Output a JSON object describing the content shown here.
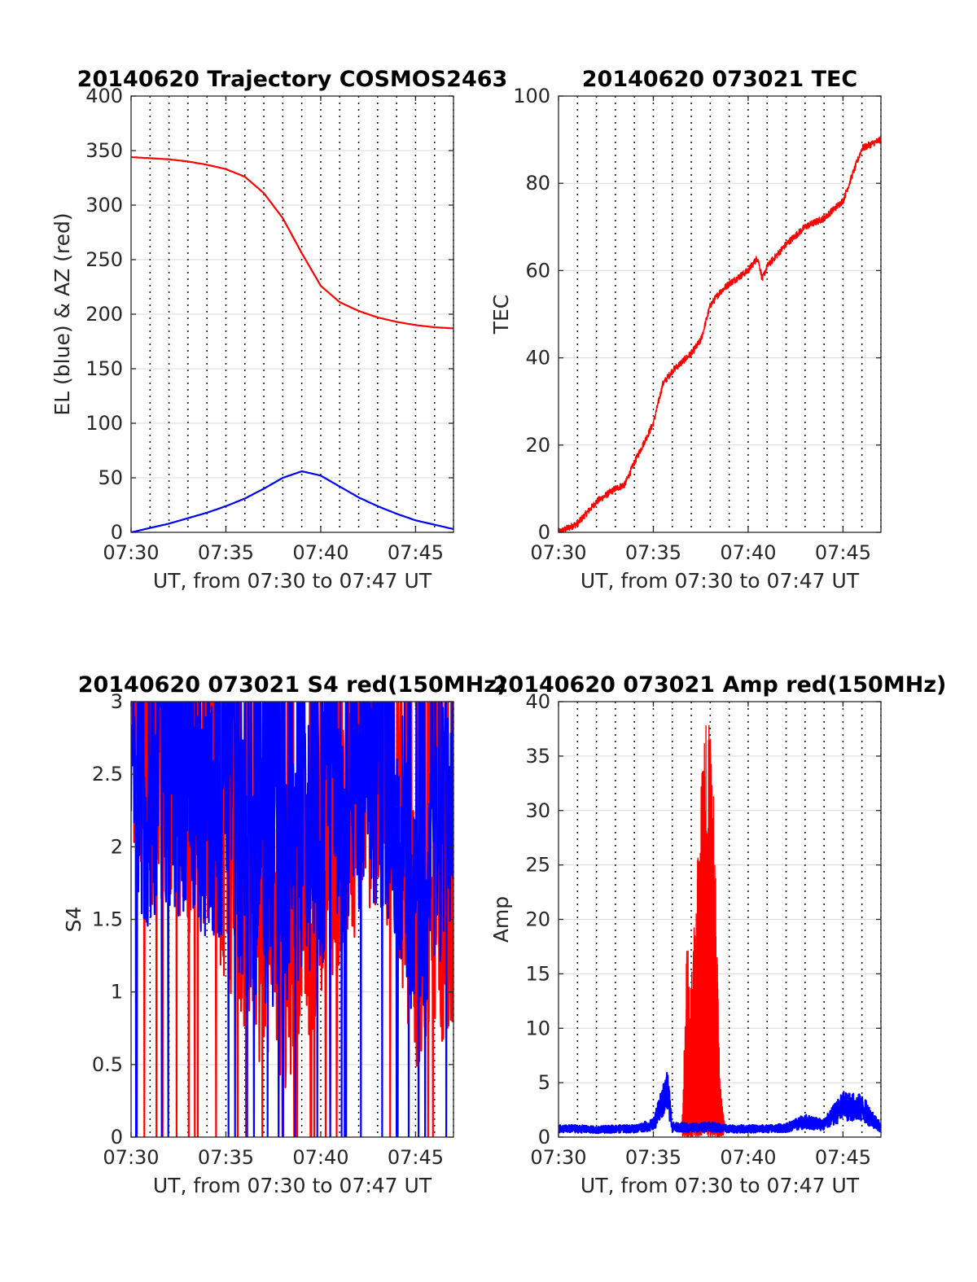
{
  "chart_data": [
    {
      "id": "trajectory",
      "type": "line",
      "title": "20140620 Trajectory COSMOS2463",
      "xlabel": "UT, from 07:30 to 07:47 UT",
      "ylabel": "EL (blue) & AZ (red)",
      "xlim": [
        "07:30",
        "07:47"
      ],
      "ylim": [
        0,
        400
      ],
      "xticks": [
        "07:30",
        "07:35",
        "07:40",
        "07:45"
      ],
      "yticks": [
        "0",
        "50",
        "100",
        "150",
        "200",
        "250",
        "300",
        "350",
        "400"
      ],
      "grid": true,
      "series": [
        {
          "color": "#ff0000",
          "x": [
            "07:30",
            "07:31",
            "07:32",
            "07:33",
            "07:34",
            "07:35",
            "07:36",
            "07:37",
            "07:38",
            "07:39",
            "07:40",
            "07:41",
            "07:42",
            "07:43",
            "07:44",
            "07:45",
            "07:46",
            "07:47"
          ],
          "values": [
            344,
            343,
            342,
            340,
            337,
            333,
            326,
            311,
            288,
            256,
            226,
            211,
            203,
            197,
            193,
            190,
            188,
            187
          ]
        },
        {
          "color": "#0000ff",
          "x": [
            "07:30",
            "07:31",
            "07:32",
            "07:33",
            "07:34",
            "07:35",
            "07:36",
            "07:37",
            "07:38",
            "07:39",
            "07:40",
            "07:41",
            "07:42",
            "07:43",
            "07:44",
            "07:45",
            "07:46",
            "07:47"
          ],
          "values": [
            0,
            4,
            8,
            13,
            18,
            24,
            31,
            40,
            50,
            56,
            52,
            42,
            32,
            24,
            17,
            11,
            7,
            3
          ]
        }
      ]
    },
    {
      "id": "tec",
      "type": "line",
      "title": "20140620 073021 TEC",
      "xlabel": "UT, from 07:30 to 07:47 UT",
      "ylabel": "TEC",
      "xlim": [
        "07:30",
        "07:47"
      ],
      "ylim": [
        0,
        100
      ],
      "xticks": [
        "07:30",
        "07:35",
        "07:40",
        "07:45"
      ],
      "yticks": [
        "0",
        "20",
        "40",
        "60",
        "80",
        "100"
      ],
      "grid": true,
      "series": [
        {
          "color": "#ff0000",
          "x": [
            "07:30",
            "07:31",
            "07:32",
            "07:33",
            "07:33:30",
            "07:34",
            "07:35",
            "07:35:30",
            "07:36",
            "07:37",
            "07:37:30",
            "07:38",
            "07:38:30",
            "07:39",
            "07:40",
            "07:40:30",
            "07:40:45",
            "07:41",
            "07:42",
            "07:43",
            "07:44",
            "07:45",
            "07:46",
            "07:47"
          ],
          "values": [
            0,
            2,
            7,
            10,
            11,
            16,
            25,
            34,
            37,
            41,
            44,
            52,
            55,
            57,
            60,
            63,
            58,
            61,
            66,
            70,
            72,
            76,
            88,
            90
          ]
        }
      ]
    },
    {
      "id": "s4",
      "type": "line",
      "title": "20140620 073021 S4 red(150MHz)",
      "xlabel": "UT, from 07:30 to 07:47 UT",
      "ylabel": "S4",
      "xlim": [
        "07:30",
        "07:47"
      ],
      "ylim": [
        0,
        3
      ],
      "xticks": [
        "07:30",
        "07:35",
        "07:40",
        "07:45"
      ],
      "yticks": [
        "0",
        "0.5",
        "1",
        "1.5",
        "2",
        "2.5",
        "3"
      ],
      "grid": true,
      "series": [
        {
          "color": "#ff0000",
          "x": [
            "07:30",
            "07:31",
            "07:32",
            "07:33",
            "07:34",
            "07:35",
            "07:36",
            "07:37",
            "07:38",
            "07:39",
            "07:40",
            "07:41",
            "07:42",
            "07:43",
            "07:44",
            "07:45",
            "07:46",
            "07:47"
          ],
          "values": [
            2.6,
            2.2,
            2.3,
            2.0,
            2.1,
            1.7,
            1.3,
            1.1,
            0.9,
            1.2,
            1.5,
            1.6,
            2.0,
            2.2,
            1.9,
            1.0,
            1.2,
            1.4
          ]
        },
        {
          "color": "#0000ff",
          "x": [
            "07:30",
            "07:31",
            "07:32",
            "07:33",
            "07:34",
            "07:35",
            "07:36",
            "07:37",
            "07:38",
            "07:39",
            "07:40",
            "07:41",
            "07:42",
            "07:43",
            "07:44",
            "07:45",
            "07:46",
            "07:47"
          ],
          "values": [
            2.3,
            2.0,
            2.2,
            2.1,
            2.0,
            1.9,
            1.6,
            1.5,
            1.4,
            1.6,
            1.8,
            2.0,
            2.1,
            2.2,
            2.0,
            1.3,
            1.5,
            2.2
          ]
        }
      ]
    },
    {
      "id": "amp",
      "type": "line",
      "title": "20140620 073021 Amp red(150MHz)",
      "xlabel": "UT, from 07:30 to 07:47 UT",
      "ylabel": "Amp",
      "xlim": [
        "07:30",
        "07:47"
      ],
      "ylim": [
        0,
        40
      ],
      "xticks": [
        "07:30",
        "07:35",
        "07:40",
        "07:45"
      ],
      "yticks": [
        "0",
        "5",
        "10",
        "15",
        "20",
        "25",
        "30",
        "35",
        "40"
      ],
      "grid": true,
      "series": [
        {
          "color": "#ff0000",
          "x": [
            "07:36:30",
            "07:36:45",
            "07:37",
            "07:37:15",
            "07:37:30",
            "07:37:45",
            "07:38",
            "07:38:15",
            "07:38:30",
            "07:38:45"
          ],
          "values": [
            1,
            16,
            15,
            20,
            30,
            37,
            34,
            27,
            5,
            1
          ]
        },
        {
          "color": "#0000ff",
          "x": [
            "07:30",
            "07:31",
            "07:32",
            "07:33",
            "07:34",
            "07:35",
            "07:35:45",
            "07:36",
            "07:37",
            "07:38",
            "07:39",
            "07:40",
            "07:41",
            "07:42",
            "07:43",
            "07:44",
            "07:45",
            "07:46",
            "07:47"
          ],
          "values": [
            0.8,
            0.8,
            0.7,
            0.8,
            0.8,
            1.2,
            4.5,
            1.0,
            0.9,
            1.0,
            0.8,
            0.8,
            0.8,
            0.9,
            1.5,
            1.2,
            3.0,
            2.8,
            0.9
          ]
        }
      ]
    }
  ]
}
